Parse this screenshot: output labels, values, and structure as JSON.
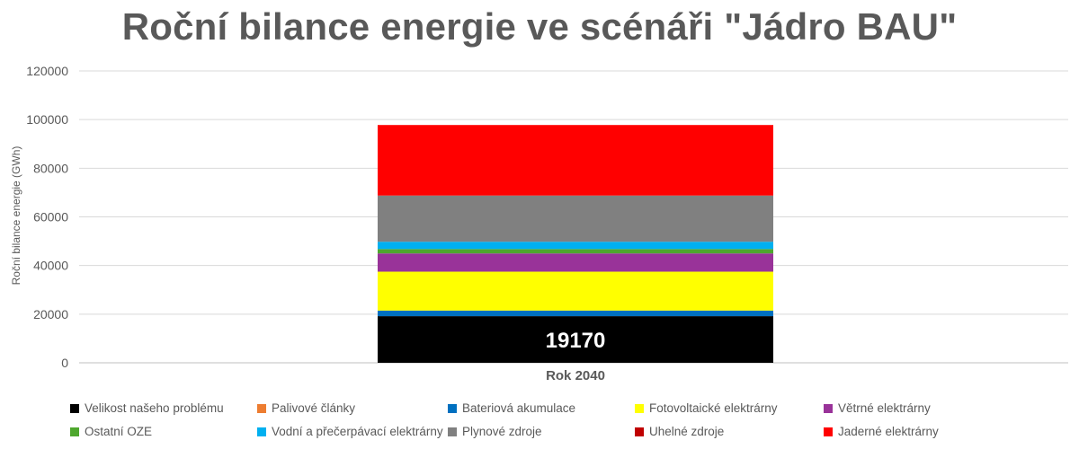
{
  "chart_data": {
    "type": "bar",
    "stacked": true,
    "title": "Roční bilance energie ve scénáři \"Jádro BAU\"",
    "ylabel": "Roční bilance energie (GWh)",
    "xlabel": "",
    "categories": [
      "Rok 2040"
    ],
    "ylim": [
      0,
      120000
    ],
    "yticks": [
      0,
      20000,
      40000,
      60000,
      80000,
      100000,
      120000
    ],
    "ytick_labels": [
      "0",
      "20000",
      "40000",
      "60000",
      "80000",
      "100000",
      "120000"
    ],
    "grid": true,
    "legend_position": "bottom",
    "series": [
      {
        "name": "Velikost našeho problému",
        "color": "#000000",
        "values": [
          19170
        ],
        "data_label": "19170"
      },
      {
        "name": "Palivové články",
        "color": "#ED7D31",
        "values": [
          0
        ]
      },
      {
        "name": "Bateriová akumulace",
        "color": "#0070C0",
        "values": [
          2300
        ]
      },
      {
        "name": "Fotovoltaické elektrárny",
        "color": "#FFFF00",
        "values": [
          16000
        ]
      },
      {
        "name": "Větrné elektrárny",
        "color": "#993399",
        "values": [
          7500
        ]
      },
      {
        "name": "Ostatní OZE",
        "color": "#4EA72E",
        "values": [
          1800
        ]
      },
      {
        "name": "Vodní a přečerpávací elektrárny",
        "color": "#00B0F0",
        "values": [
          3000
        ]
      },
      {
        "name": "Plynové zdroje",
        "color": "#808080",
        "values": [
          19000
        ]
      },
      {
        "name": "Uhelné zdroje",
        "color": "#C00000",
        "values": [
          0
        ]
      },
      {
        "name": "Jaderné elektrárny",
        "color": "#FF0000",
        "values": [
          29000
        ]
      }
    ]
  }
}
